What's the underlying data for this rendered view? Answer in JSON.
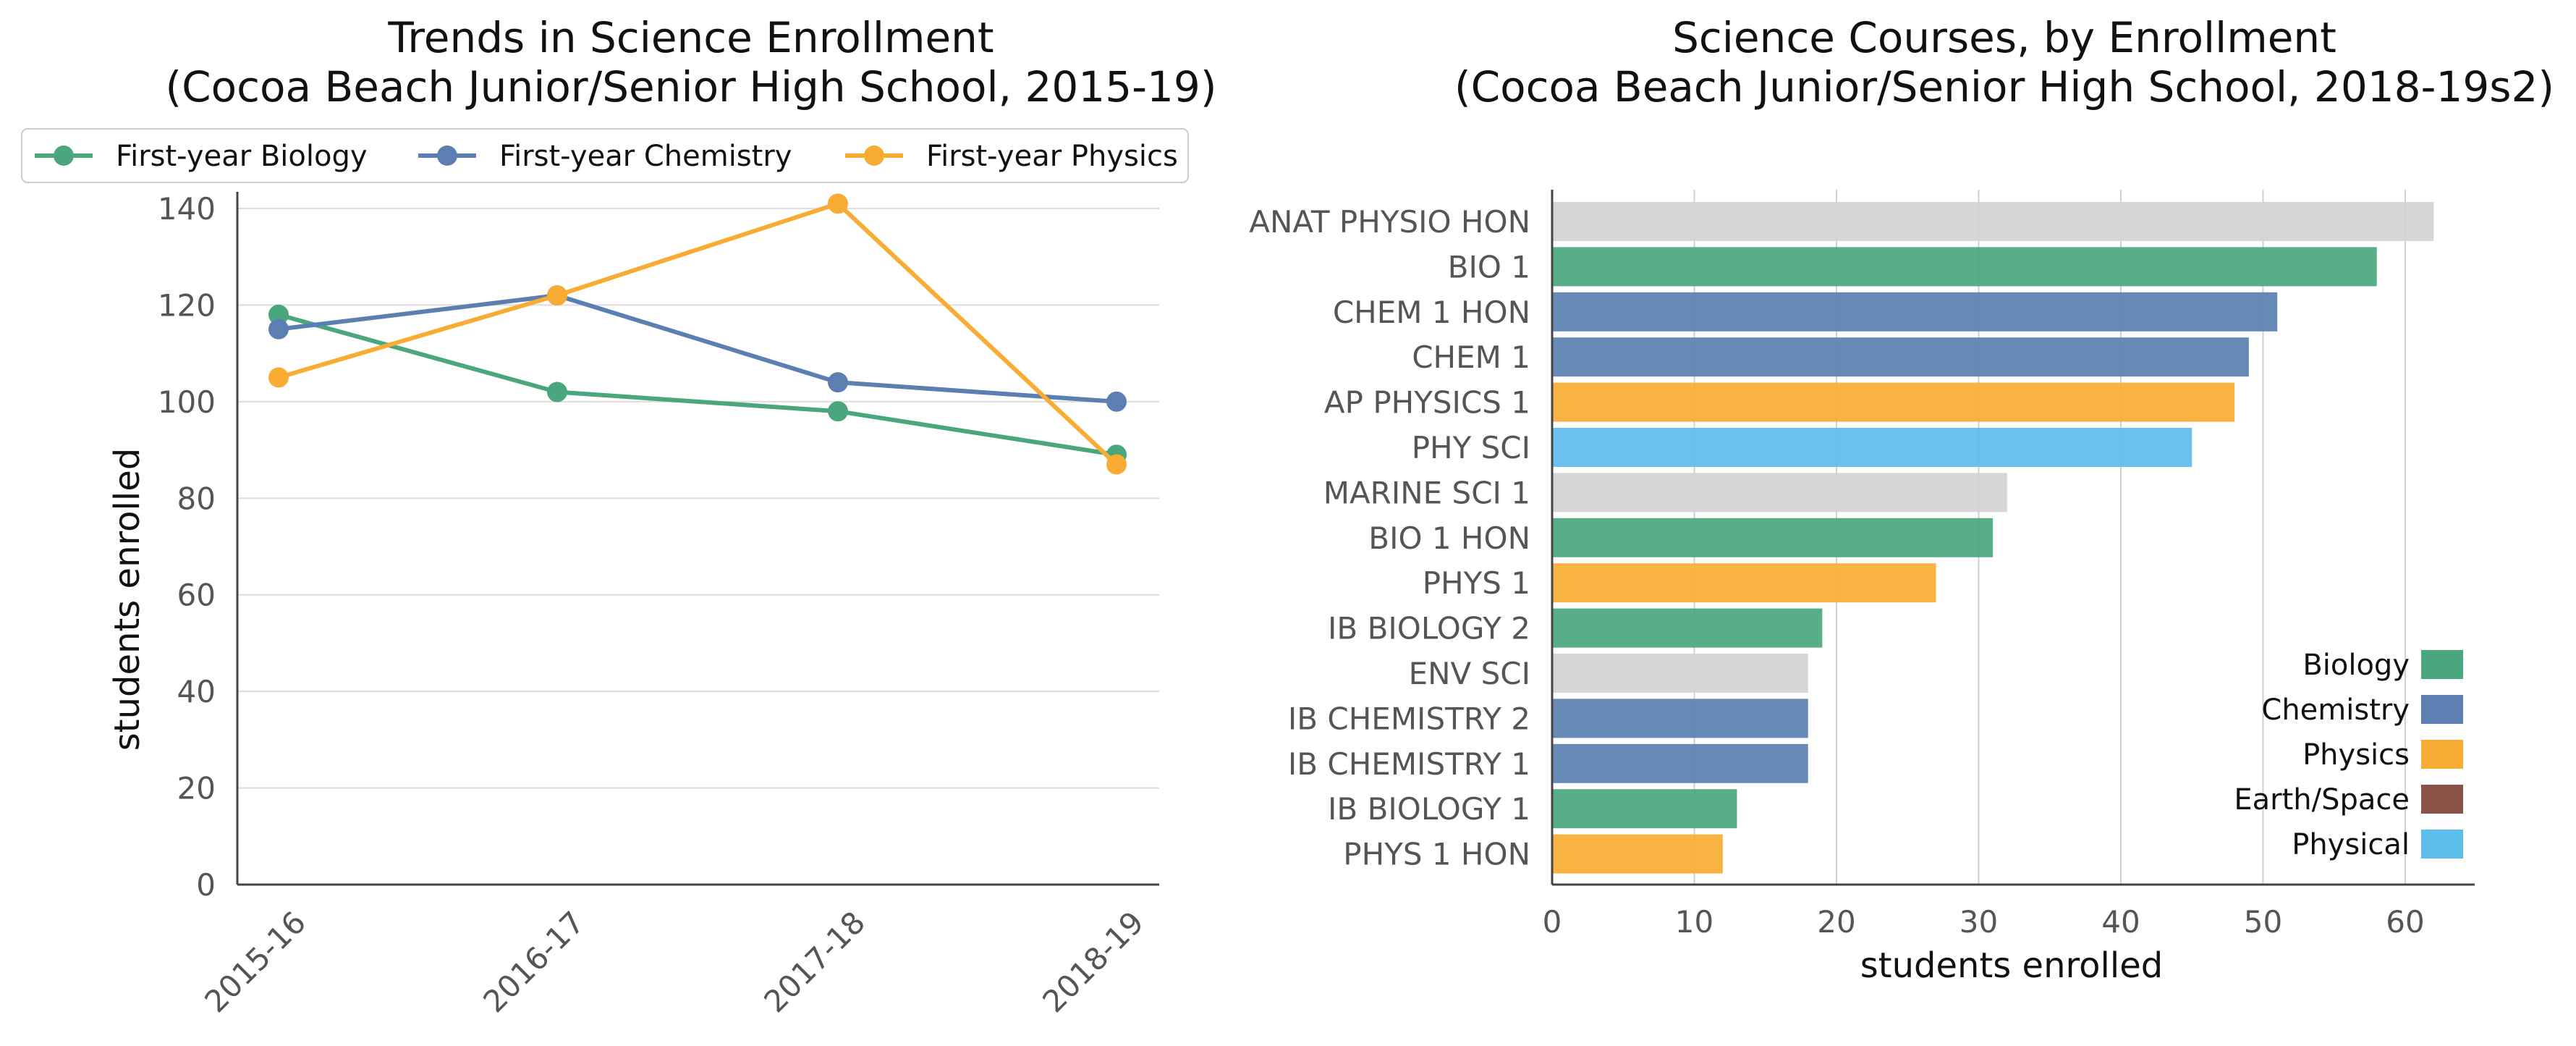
{
  "chart_data": [
    {
      "type": "line",
      "title": "Trends in Science Enrollment",
      "subtitle": "(Cocoa Beach Junior/Senior High School, 2015-19)",
      "xlabel": "",
      "ylabel": "students enrolled",
      "categories": [
        "2015-16",
        "2016-17",
        "2017-18",
        "2018-19"
      ],
      "ylim": [
        0,
        140
      ],
      "yticks": [
        0,
        20,
        40,
        60,
        80,
        100,
        120,
        140
      ],
      "grid": "horizontal",
      "legend": "top",
      "series": [
        {
          "name": "First-year Biology",
          "color": "#4aa77d",
          "values": [
            118,
            102,
            98,
            89
          ]
        },
        {
          "name": "First-year Chemistry",
          "color": "#5a7fb0",
          "values": [
            115,
            122,
            104,
            100
          ]
        },
        {
          "name": "First-year Physics",
          "color": "#f9ac33",
          "values": [
            105,
            122,
            141,
            87
          ]
        }
      ]
    },
    {
      "type": "bar",
      "orientation": "horizontal",
      "title": "Science Courses, by Enrollment",
      "subtitle": "(Cocoa Beach Junior/Senior High School, 2018-19s2)",
      "xlabel": "students enrolled",
      "ylabel": "",
      "xlim": [
        0,
        65
      ],
      "xticks": [
        0,
        10,
        20,
        30,
        40,
        50,
        60
      ],
      "grid": "vertical",
      "legend": "bottom-right",
      "categories": [
        "ANAT PHYSIO HON",
        "BIO 1",
        "CHEM 1 HON",
        "CHEM 1",
        "AP PHYSICS 1",
        "PHY SCI",
        "MARINE SCI 1",
        "BIO 1 HON",
        "PHYS 1",
        "IB BIOLOGY 2",
        "ENV SCI",
        "IB CHEMISTRY 2",
        "IB CHEMISTRY 1",
        "IB BIOLOGY 1",
        "PHYS 1 HON"
      ],
      "values": [
        62,
        58,
        51,
        49,
        48,
        45,
        32,
        31,
        27,
        19,
        18,
        18,
        18,
        13,
        12
      ],
      "groups": [
        "Other",
        "Biology",
        "Chemistry",
        "Chemistry",
        "Physics",
        "Physical",
        "Other",
        "Biology",
        "Physics",
        "Biology",
        "Other",
        "Chemistry",
        "Chemistry",
        "Biology",
        "Physics"
      ],
      "legend_entries": [
        {
          "name": "Biology",
          "color": "#4aa77d"
        },
        {
          "name": "Chemistry",
          "color": "#5a7fb0"
        },
        {
          "name": "Physics",
          "color": "#f9ac33"
        },
        {
          "name": "Earth/Space",
          "color": "#8b5347"
        },
        {
          "name": "Physical",
          "color": "#5dbdea"
        }
      ],
      "other_color": "#d3d3d3"
    }
  ]
}
